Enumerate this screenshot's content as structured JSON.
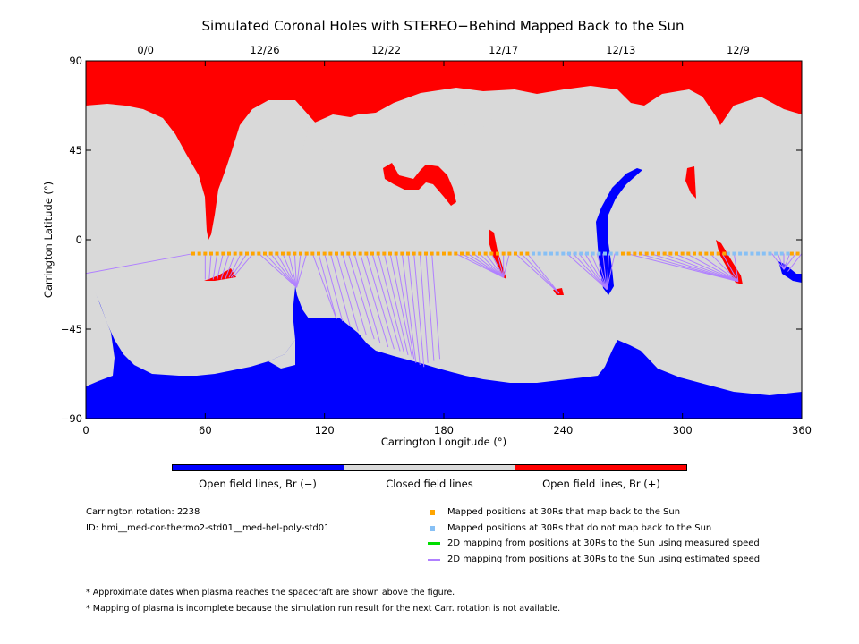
{
  "chart_data": {
    "type": "map",
    "title": "Simulated Coronal Holes with STEREO−Behind Mapped Back to the Sun",
    "xlabel": "Carrington Longitude (°)",
    "ylabel": "Carrington Latitude (°)",
    "xlim": [
      0,
      360
    ],
    "ylim": [
      -90,
      90
    ],
    "x_ticks": [
      "0",
      "60",
      "120",
      "180",
      "240",
      "300",
      "360"
    ],
    "y_ticks": [
      "90",
      "45",
      "0",
      "−45",
      "−90"
    ],
    "top_date_ticks": [
      {
        "lon": 30,
        "label": "0/0"
      },
      {
        "lon": 90,
        "label": "12/26"
      },
      {
        "lon": 151,
        "label": "12/22"
      },
      {
        "lon": 210,
        "label": "12/17"
      },
      {
        "lon": 269,
        "label": "12/13"
      },
      {
        "lon": 328,
        "label": "12/9"
      }
    ],
    "colors": {
      "negative": "#0000ff",
      "closed": "#d9d9d9",
      "positive": "#ff0000",
      "mapped": "#ffa500",
      "unmapped": "#87c0f5",
      "measured": "#00dd00",
      "estimated": "#b080ff"
    },
    "mapped_points": {
      "lat": -7,
      "orange_ranges": [
        [
          54,
          225
        ],
        [
          270,
          323
        ],
        [
          355,
          360
        ]
      ],
      "blue_ranges": [
        [
          225,
          270
        ],
        [
          323,
          355
        ]
      ],
      "spacing": 3
    },
    "mapping_lines": [
      [
        [
          54,
          -7
        ],
        [
          0,
          -17
        ]
      ],
      [
        [
          60,
          -7
        ],
        [
          60,
          -20
        ]
      ],
      [
        [
          63,
          -7
        ],
        [
          62,
          -20
        ]
      ],
      [
        [
          66,
          -7
        ],
        [
          64,
          -20
        ]
      ],
      [
        [
          69,
          -7
        ],
        [
          66,
          -20
        ]
      ],
      [
        [
          72,
          -7
        ],
        [
          68,
          -20
        ]
      ],
      [
        [
          75,
          -7
        ],
        [
          70,
          -20
        ]
      ],
      [
        [
          78,
          -7
        ],
        [
          72,
          -19
        ]
      ],
      [
        [
          81,
          -7
        ],
        [
          73,
          -19
        ]
      ],
      [
        [
          84,
          -7
        ],
        [
          74,
          -19
        ]
      ],
      [
        [
          87,
          -7
        ],
        [
          106,
          -24
        ]
      ],
      [
        [
          90,
          -7
        ],
        [
          106,
          -24
        ]
      ],
      [
        [
          93,
          -7
        ],
        [
          106,
          -24
        ]
      ],
      [
        [
          96,
          -7
        ],
        [
          106,
          -24
        ]
      ],
      [
        [
          99,
          -7
        ],
        [
          106,
          -24
        ]
      ],
      [
        [
          102,
          -7
        ],
        [
          106,
          -24
        ]
      ],
      [
        [
          105,
          -7
        ],
        [
          106,
          -24
        ]
      ],
      [
        [
          108,
          -7
        ],
        [
          106,
          -24
        ]
      ],
      [
        [
          111,
          -7
        ],
        [
          106,
          -24
        ]
      ],
      [
        [
          114,
          -7
        ],
        [
          126,
          -40
        ]
      ],
      [
        [
          117,
          -7
        ],
        [
          126,
          -40
        ]
      ],
      [
        [
          120,
          -7
        ],
        [
          129,
          -41
        ]
      ],
      [
        [
          123,
          -7
        ],
        [
          133,
          -44
        ]
      ],
      [
        [
          126,
          -7
        ],
        [
          137,
          -46
        ]
      ],
      [
        [
          129,
          -7
        ],
        [
          141,
          -48
        ]
      ],
      [
        [
          132,
          -7
        ],
        [
          145,
          -50
        ]
      ],
      [
        [
          135,
          -7
        ],
        [
          148,
          -52
        ]
      ],
      [
        [
          138,
          -7
        ],
        [
          152,
          -54
        ]
      ],
      [
        [
          141,
          -7
        ],
        [
          155,
          -55
        ]
      ],
      [
        [
          144,
          -7
        ],
        [
          158,
          -56
        ]
      ],
      [
        [
          147,
          -7
        ],
        [
          160,
          -57
        ]
      ],
      [
        [
          150,
          -7
        ],
        [
          162,
          -58
        ]
      ],
      [
        [
          153,
          -7
        ],
        [
          164,
          -59
        ]
      ],
      [
        [
          156,
          -7
        ],
        [
          165,
          -60
        ]
      ],
      [
        [
          159,
          -7
        ],
        [
          166,
          -62
        ]
      ],
      [
        [
          162,
          -7
        ],
        [
          168,
          -63
        ]
      ],
      [
        [
          165,
          -7
        ],
        [
          170,
          -64
        ]
      ],
      [
        [
          168,
          -7
        ],
        [
          172,
          -62
        ]
      ],
      [
        [
          171,
          -7
        ],
        [
          175,
          -61
        ]
      ],
      [
        [
          174,
          -7
        ],
        [
          178,
          -60
        ]
      ],
      [
        [
          186,
          -7
        ],
        [
          210,
          -19
        ]
      ],
      [
        [
          189,
          -7
        ],
        [
          210,
          -19
        ]
      ],
      [
        [
          192,
          -7
        ],
        [
          210,
          -19
        ]
      ],
      [
        [
          195,
          -7
        ],
        [
          210,
          -19
        ]
      ],
      [
        [
          198,
          -7
        ],
        [
          210,
          -19
        ]
      ],
      [
        [
          201,
          -7
        ],
        [
          210,
          -19
        ]
      ],
      [
        [
          204,
          -7
        ],
        [
          210,
          -19
        ]
      ],
      [
        [
          207,
          -7
        ],
        [
          210,
          -19
        ]
      ],
      [
        [
          210,
          -7
        ],
        [
          210,
          -19
        ]
      ],
      [
        [
          213,
          -7
        ],
        [
          210,
          -19
        ]
      ],
      [
        [
          216,
          -7
        ],
        [
          238,
          -27
        ]
      ],
      [
        [
          219,
          -7
        ],
        [
          238,
          -27
        ]
      ],
      [
        [
          222,
          -7
        ],
        [
          238,
          -27
        ]
      ],
      [
        [
          242,
          -7
        ],
        [
          262,
          -25
        ]
      ],
      [
        [
          245,
          -7
        ],
        [
          262,
          -25
        ]
      ],
      [
        [
          248,
          -7
        ],
        [
          262,
          -25
        ]
      ],
      [
        [
          251,
          -7
        ],
        [
          262,
          -25
        ]
      ],
      [
        [
          254,
          -7
        ],
        [
          262,
          -25
        ]
      ],
      [
        [
          257,
          -7
        ],
        [
          262,
          -25
        ]
      ],
      [
        [
          260,
          -7
        ],
        [
          262,
          -25
        ]
      ],
      [
        [
          263,
          -7
        ],
        [
          262,
          -25
        ]
      ],
      [
        [
          266,
          -7
        ],
        [
          262,
          -25
        ]
      ],
      [
        [
          272,
          -7
        ],
        [
          328,
          -21
        ]
      ],
      [
        [
          278,
          -7
        ],
        [
          328,
          -21
        ]
      ],
      [
        [
          284,
          -7
        ],
        [
          328,
          -21
        ]
      ],
      [
        [
          290,
          -7
        ],
        [
          328,
          -21
        ]
      ],
      [
        [
          296,
          -7
        ],
        [
          328,
          -21
        ]
      ],
      [
        [
          302,
          -7
        ],
        [
          328,
          -21
        ]
      ],
      [
        [
          308,
          -7
        ],
        [
          328,
          -21
        ]
      ],
      [
        [
          314,
          -7
        ],
        [
          328,
          -21
        ]
      ],
      [
        [
          320,
          -7
        ],
        [
          328,
          -21
        ]
      ],
      [
        [
          326,
          -7
        ],
        [
          328,
          -21
        ]
      ],
      [
        [
          345,
          -7
        ],
        [
          351,
          -15
        ]
      ],
      [
        [
          348,
          -7
        ],
        [
          351,
          -15
        ]
      ],
      [
        [
          351,
          -7
        ],
        [
          351,
          -15
        ]
      ],
      [
        [
          354,
          -7
        ],
        [
          351,
          -15
        ]
      ],
      [
        [
          357,
          -7
        ],
        [
          351,
          -15
        ]
      ],
      [
        [
          360,
          -7
        ],
        [
          353,
          -16
        ]
      ]
    ]
  },
  "colorbar_labels": [
    "Open field lines, Br (−)",
    "Closed field lines",
    "Open field lines, Br (+)"
  ],
  "info": {
    "rotation": "Carrington rotation: 2238",
    "id": "ID: hmi__med-cor-thermo2-std01__med-hel-poly-std01"
  },
  "legend": [
    "Mapped positions at 30Rs that map back to the Sun",
    "Mapped positions at 30Rs that do not map back to the Sun",
    "2D mapping from positions at 30Rs to the Sun using measured speed",
    "2D mapping from positions at 30Rs to the Sun using estimated speed"
  ],
  "notes": [
    "* Approximate dates when plasma reaches the spacecraft are shown above the figure.",
    "* Mapping of plasma is incomplete because the simulation run result for the next Carr. rotation is not available."
  ]
}
